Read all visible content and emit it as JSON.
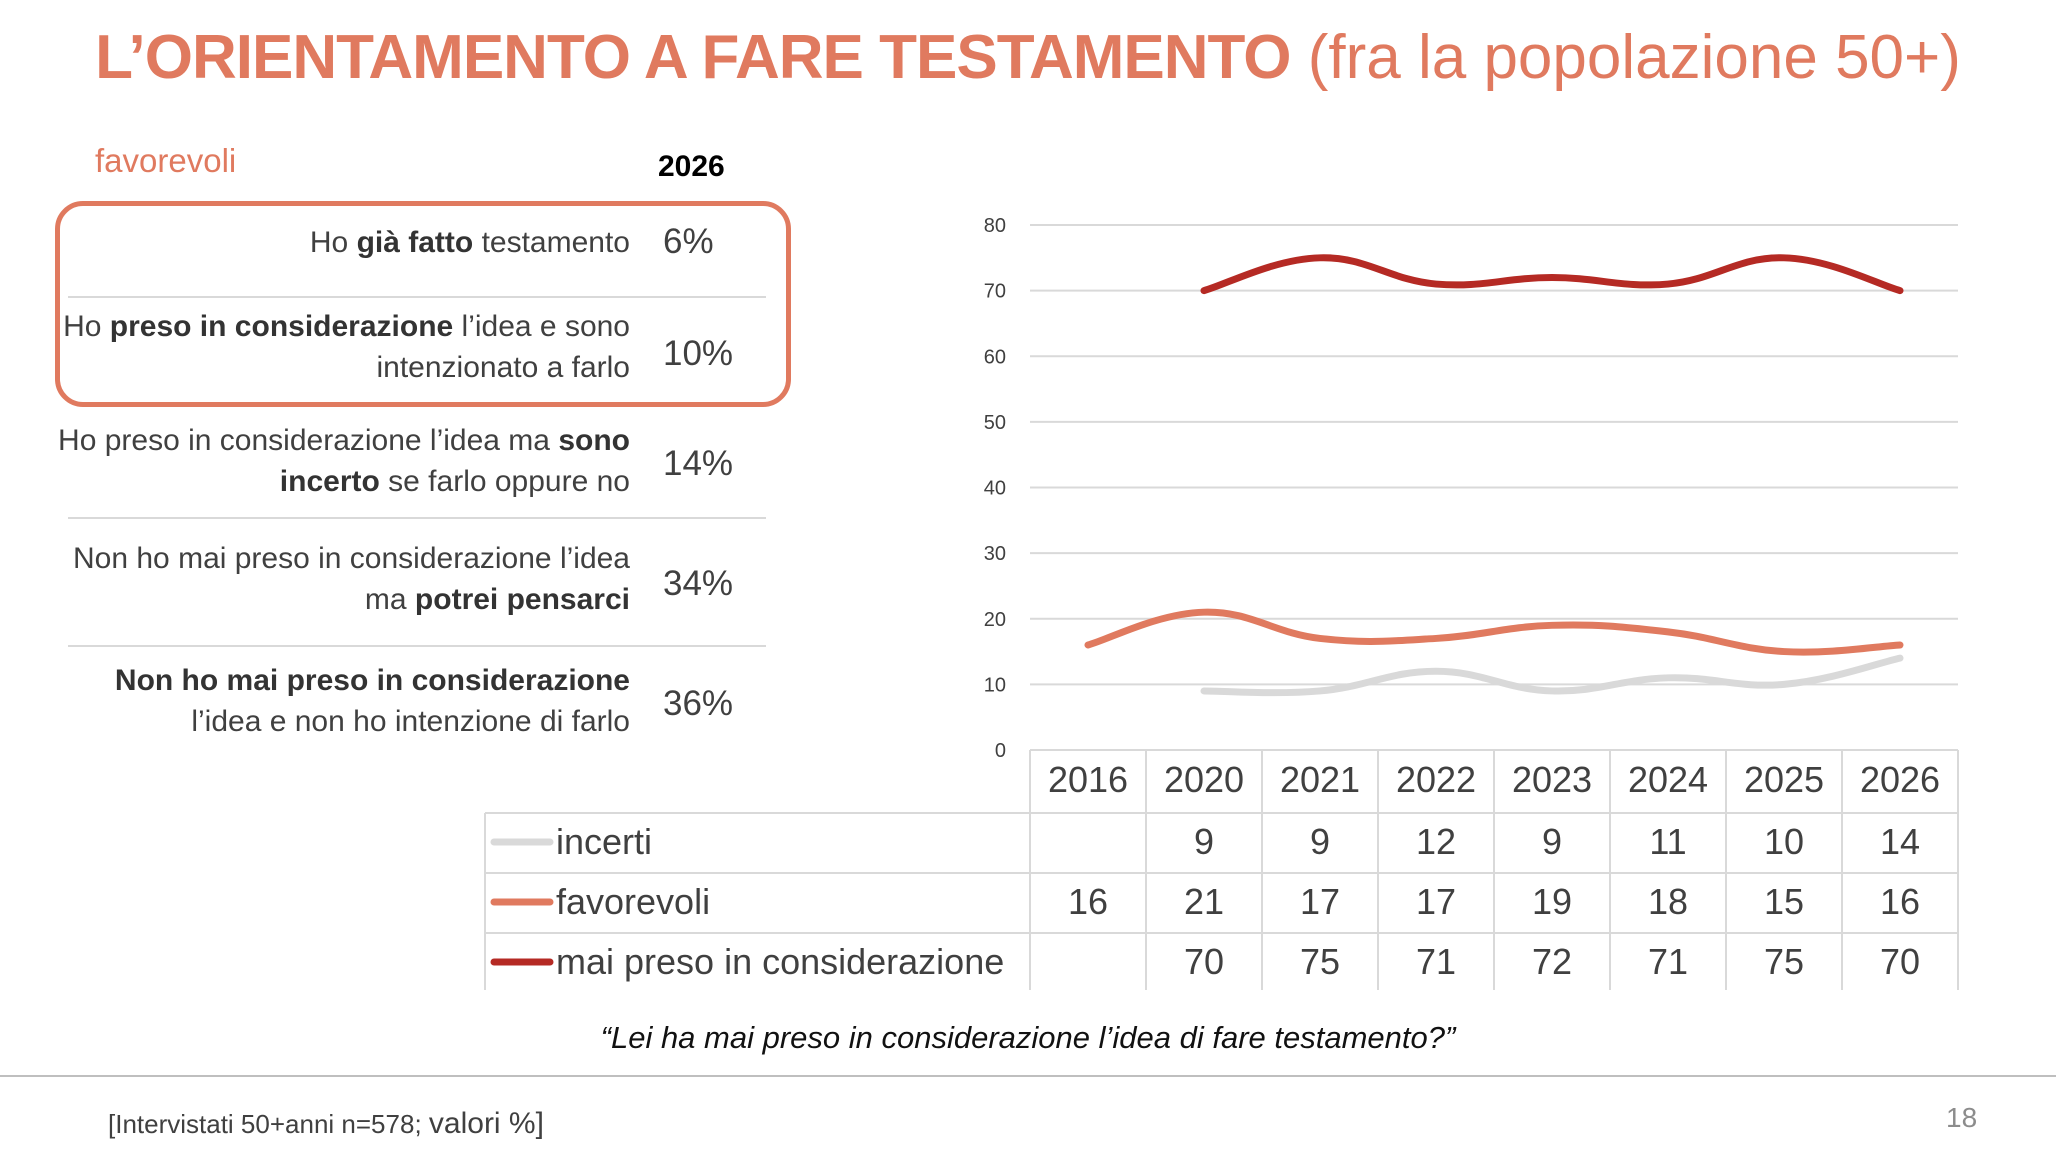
{
  "title": {
    "bold": "L’ORIENTAMENTO A FARE TESTAMENTO",
    "rest": "(fra la popolazione 50+)"
  },
  "left_panel": {
    "group_label": "favorevoli",
    "year": "2026",
    "rows": [
      {
        "parts": [
          {
            "t": "Ho ",
            "b": false
          },
          {
            "t": "già fatto",
            "b": true
          },
          {
            "t": " testamento",
            "b": false
          }
        ],
        "pct": "6%"
      },
      {
        "parts": [
          {
            "t": "Ho ",
            "b": false
          },
          {
            "t": "preso in considerazione",
            "b": true
          },
          {
            "t": " l’idea e sono intenzionato a farlo",
            "b": false
          }
        ],
        "pct": "10%"
      },
      {
        "parts": [
          {
            "t": "Ho preso in considerazione l’idea ma ",
            "b": false
          },
          {
            "t": "sono incerto",
            "b": true
          },
          {
            "t": " se farlo oppure no",
            "b": false
          }
        ],
        "pct": "14%"
      },
      {
        "parts": [
          {
            "t": "Non ho mai preso in considerazione l’idea ma ",
            "b": false
          },
          {
            "t": "potrei pensarci",
            "b": true
          }
        ],
        "pct": "34%"
      },
      {
        "parts": [
          {
            "t": "Non ho mai preso in considerazione",
            "b": true
          },
          {
            "t": " l’idea e non ho intenzione di farlo",
            "b": false
          }
        ],
        "pct": "36%"
      }
    ]
  },
  "chart_data": {
    "type": "line",
    "categories": [
      "2016",
      "2020",
      "2021",
      "2022",
      "2023",
      "2024",
      "2025",
      "2026"
    ],
    "ylim": [
      0,
      80
    ],
    "yticks": [
      0,
      10,
      20,
      30,
      40,
      50,
      60,
      70,
      80
    ],
    "grid": true,
    "legend": "data-table-below",
    "series": [
      {
        "name": "incerti",
        "color": "#d9d9d9",
        "values": [
          null,
          9,
          9,
          12,
          9,
          11,
          10,
          14
        ]
      },
      {
        "name": "favorevoli",
        "color": "#e07a5f",
        "values": [
          16,
          21,
          17,
          17,
          19,
          18,
          15,
          16
        ]
      },
      {
        "name": "mai preso in considerazione",
        "color": "#b52a24",
        "values": [
          null,
          70,
          75,
          71,
          72,
          71,
          75,
          70
        ]
      }
    ]
  },
  "question": "“Lei ha mai preso in considerazione l’idea di fare testamento?”",
  "footer": {
    "sample": "[Intervistati 50+anni n=578;",
    "values": "valori %]"
  },
  "page_number": "18"
}
